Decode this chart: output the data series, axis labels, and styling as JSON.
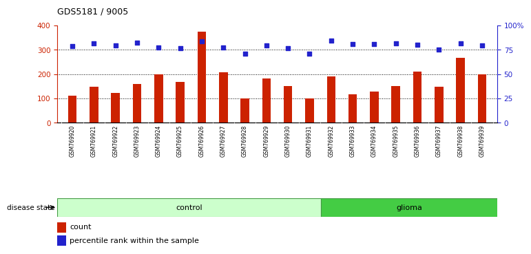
{
  "title": "GDS5181 / 9005",
  "samples": [
    "GSM769920",
    "GSM769921",
    "GSM769922",
    "GSM769923",
    "GSM769924",
    "GSM769925",
    "GSM769926",
    "GSM769927",
    "GSM769928",
    "GSM769929",
    "GSM769930",
    "GSM769931",
    "GSM769932",
    "GSM769933",
    "GSM769934",
    "GSM769935",
    "GSM769936",
    "GSM769937",
    "GSM769938",
    "GSM769939"
  ],
  "counts": [
    112,
    148,
    122,
    160,
    200,
    168,
    375,
    207,
    100,
    183,
    152,
    100,
    190,
    118,
    128,
    152,
    210,
    148,
    268,
    200
  ],
  "percentiles_left": [
    315,
    325,
    318,
    328,
    308,
    305,
    335,
    310,
    283,
    317,
    305,
    283,
    338,
    323,
    322,
    325,
    320,
    300,
    325,
    317
  ],
  "bar_color": "#CC2200",
  "dot_color": "#2222CC",
  "control_count": 12,
  "glioma_count": 8,
  "control_color": "#CCFFCC",
  "glioma_color": "#44CC44",
  "ylim_left": [
    0,
    400
  ],
  "ylim_right": [
    0,
    100
  ],
  "yticks_left": [
    0,
    100,
    200,
    300,
    400
  ],
  "ytick_labels_left": [
    "0",
    "100",
    "200",
    "300",
    "400"
  ],
  "yticks_right": [
    0,
    25,
    50,
    75,
    100
  ],
  "ytick_labels_right": [
    "0",
    "25",
    "50",
    "75",
    "100%"
  ],
  "grid_values": [
    100,
    200,
    300
  ],
  "legend_count_label": "count",
  "legend_pct_label": "percentile rank within the sample",
  "disease_state_label": "disease state",
  "control_label": "control",
  "glioma_label": "glioma",
  "bg_plot": "#FFFFFF",
  "bg_fig": "#FFFFFF",
  "bg_labels": "#CCCCCC",
  "bar_width": 0.4
}
